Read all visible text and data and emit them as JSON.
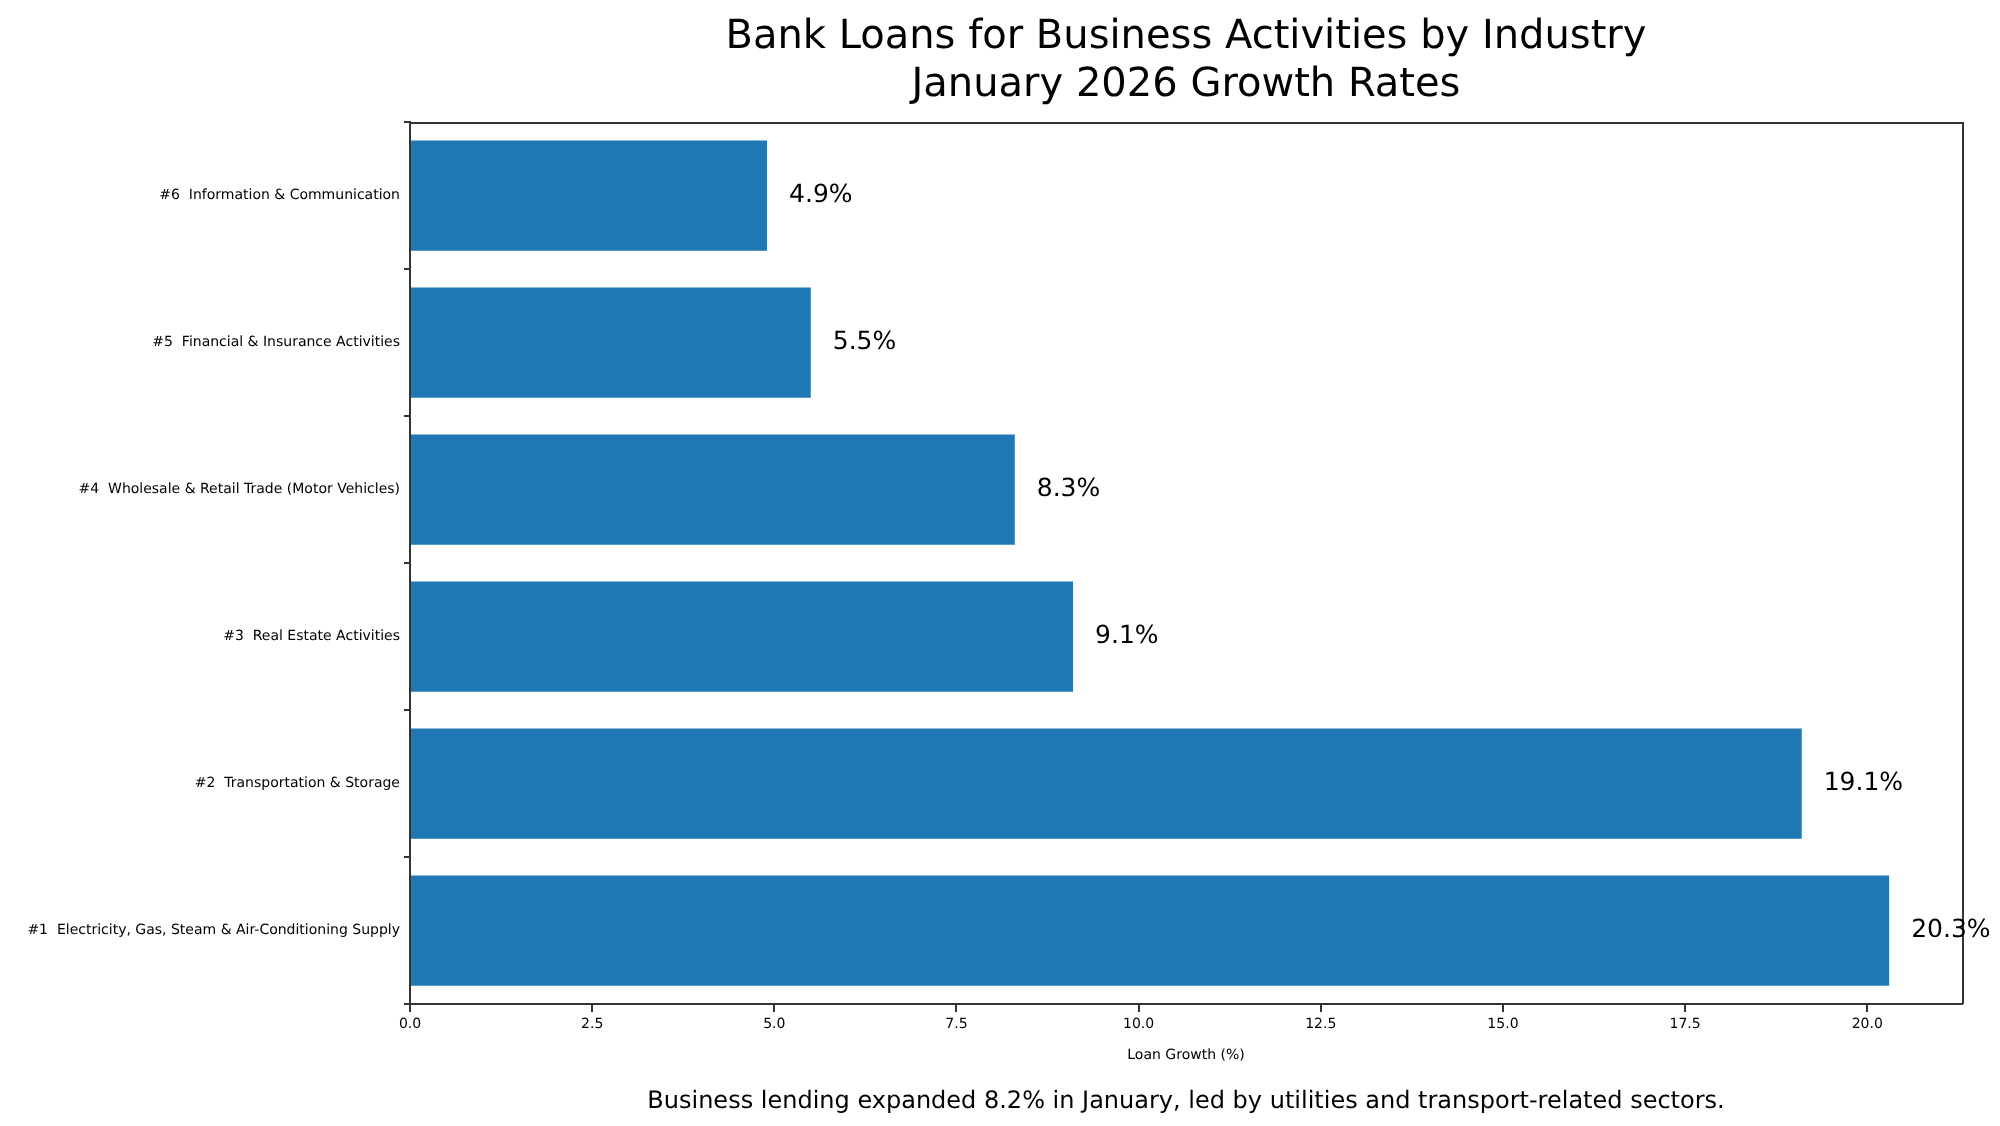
{
  "chart_data": {
    "type": "bar",
    "orientation": "horizontal",
    "title": "Bank Loans for Business Activities by Industry\nJanuary 2026 Growth Rates",
    "xlabel": "Loan Growth (%)",
    "categories": [
      "#6  Information & Communication",
      "#5  Financial & Insurance Activities",
      "#4  Wholesale & Retail Trade (Motor Vehicles)",
      "#3  Real Estate Activities",
      "#2  Transportation & Storage",
      "#1  Electricity, Gas, Steam & Air-Conditioning Supply"
    ],
    "values": [
      4.9,
      5.5,
      8.3,
      9.1,
      19.1,
      20.3
    ],
    "value_labels": [
      "4.9%",
      "5.5%",
      "8.3%",
      "9.1%",
      "19.1%",
      "20.3%"
    ],
    "color": "#1f77b4",
    "xlim": [
      0,
      21.3
    ],
    "xticks": [
      {
        "value": 0,
        "label": "0.0"
      },
      2.5,
      {
        "value": 5,
        "label": "5.0"
      },
      7.5,
      {
        "value": 10,
        "label": "10.0"
      },
      12.5,
      {
        "value": 15,
        "label": "15.0"
      },
      17.5,
      {
        "value": 20,
        "label": "20.0"
      }
    ],
    "annotations": [
      "Business lending expanded 8.2% in January, led by utilities and transport-related sectors."
    ]
  }
}
